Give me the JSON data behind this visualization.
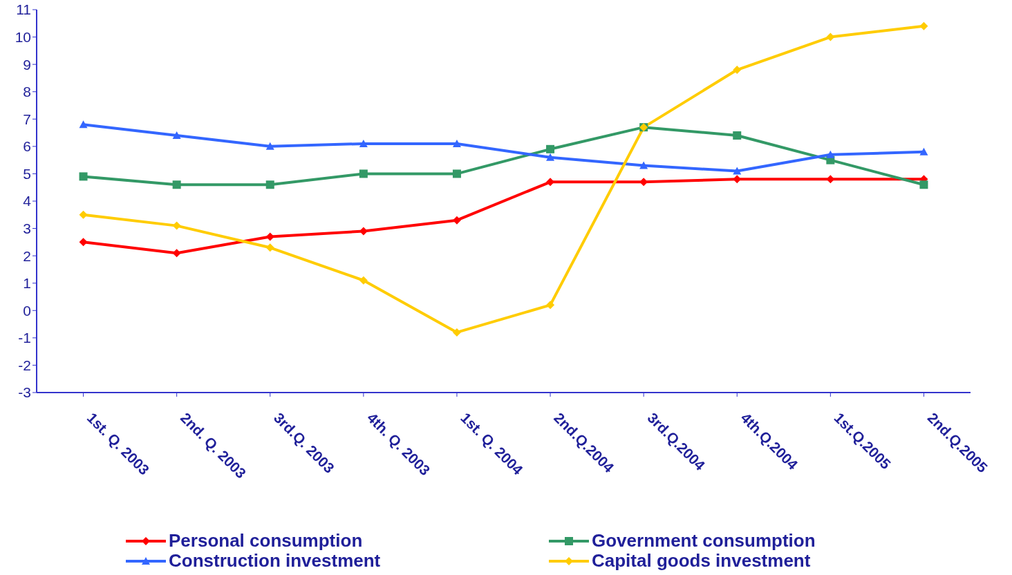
{
  "chart_data": {
    "type": "line",
    "categories": [
      "1st. Q. 2003",
      "2nd. Q. 2003",
      "3rd.Q. 2003",
      "4th. Q. 2003",
      "1st. Q. 2004",
      "2nd.Q.2004",
      "3rd.Q.2004",
      "4th.Q.2004",
      "1st.Q.2005",
      "2nd.Q.2005"
    ],
    "series": [
      {
        "name": "Personal consumption",
        "color": "#ff0000",
        "marker": "diamond",
        "values": [
          2.5,
          2.1,
          2.7,
          2.9,
          3.3,
          4.7,
          4.7,
          4.8,
          4.8,
          4.8
        ]
      },
      {
        "name": "Government consumption",
        "color": "#339966",
        "marker": "square",
        "values": [
          4.9,
          4.6,
          4.6,
          5.0,
          5.0,
          5.9,
          6.7,
          6.4,
          5.5,
          4.6
        ]
      },
      {
        "name": "Construction investment",
        "color": "#3366ff",
        "marker": "triangle",
        "values": [
          6.8,
          6.4,
          6.0,
          6.1,
          6.1,
          5.6,
          5.3,
          5.1,
          5.7,
          5.8
        ]
      },
      {
        "name": "Capital goods investment",
        "color": "#ffcc00",
        "marker": "diamond",
        "values": [
          3.5,
          3.1,
          2.3,
          1.1,
          -0.8,
          0.2,
          6.7,
          8.8,
          10.0,
          10.4
        ]
      }
    ],
    "ylim": [
      -3,
      11
    ],
    "yticks": [
      -3,
      -2,
      -1,
      0,
      1,
      2,
      3,
      4,
      5,
      6,
      7,
      8,
      9,
      10,
      11
    ],
    "grid": false,
    "legend": "bottom",
    "line_style": "solid"
  }
}
